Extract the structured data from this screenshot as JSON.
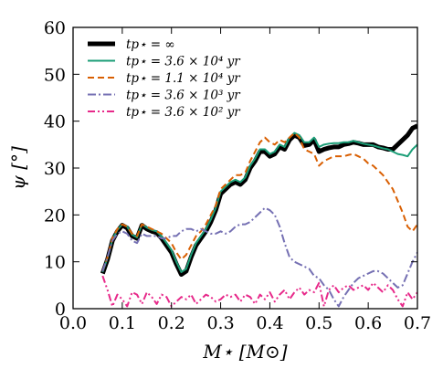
{
  "chart_data": {
    "type": "line",
    "xlabel": "M⋆ [M⊙]",
    "ylabel": "ψ [°]",
    "xlim": [
      0.0,
      0.7
    ],
    "ylim": [
      0,
      60
    ],
    "xticks": [
      0.0,
      0.1,
      0.2,
      0.3,
      0.4,
      0.5,
      0.6,
      0.7
    ],
    "xtick_labels": [
      "0.0",
      "0.1",
      "0.2",
      "0.3",
      "0.4",
      "0.5",
      "0.6",
      "0.7"
    ],
    "yticks": [
      0,
      10,
      20,
      30,
      40,
      50,
      60
    ],
    "ytick_labels": [
      "0",
      "10",
      "20",
      "30",
      "40",
      "50",
      "60"
    ],
    "grid": false,
    "legend_position": "top-left",
    "series": [
      {
        "name": "t_{p⋆} = ∞",
        "legend_label": "tp⋆ = ∞",
        "color": "#000000",
        "style": "solid-thick",
        "x": [
          0.06,
          0.07,
          0.08,
          0.09,
          0.1,
          0.11,
          0.12,
          0.13,
          0.14,
          0.15,
          0.16,
          0.17,
          0.18,
          0.19,
          0.2,
          0.21,
          0.22,
          0.23,
          0.24,
          0.25,
          0.26,
          0.27,
          0.28,
          0.29,
          0.3,
          0.31,
          0.32,
          0.33,
          0.34,
          0.35,
          0.36,
          0.37,
          0.38,
          0.39,
          0.4,
          0.41,
          0.42,
          0.43,
          0.44,
          0.45,
          0.46,
          0.47,
          0.48,
          0.49,
          0.5,
          0.51,
          0.52,
          0.53,
          0.54,
          0.55,
          0.56,
          0.57,
          0.58,
          0.59,
          0.6,
          0.61,
          0.62,
          0.63,
          0.64,
          0.65,
          0.66,
          0.67,
          0.68,
          0.69,
          0.7
        ],
        "values": [
          7.5,
          10.5,
          14.5,
          16.5,
          17.8,
          17.2,
          15.5,
          15.0,
          17.8,
          17.0,
          16.5,
          16.2,
          15.0,
          13.5,
          12.0,
          9.5,
          7.3,
          8.0,
          11.0,
          13.5,
          15.0,
          16.5,
          18.5,
          21.0,
          24.5,
          25.5,
          26.5,
          27.0,
          26.5,
          27.5,
          30.0,
          31.5,
          33.5,
          33.5,
          32.5,
          33.0,
          34.5,
          34.0,
          36.0,
          37.0,
          36.5,
          34.8,
          35.0,
          36.0,
          33.5,
          34.0,
          34.3,
          34.5,
          34.5,
          35.0,
          35.2,
          35.5,
          35.3,
          35.0,
          35.0,
          35.0,
          34.5,
          34.3,
          34.0,
          34.0,
          35.0,
          36.0,
          37.0,
          38.5,
          39.0
        ]
      },
      {
        "name": "t_{p⋆} = 3.6 × 10^4 yr",
        "legend_label": "tp⋆ = 3.6 × 10⁴ yr",
        "color": "#1b9e77",
        "style": "solid",
        "x": [
          0.06,
          0.07,
          0.08,
          0.09,
          0.1,
          0.11,
          0.12,
          0.13,
          0.14,
          0.15,
          0.16,
          0.17,
          0.18,
          0.19,
          0.2,
          0.21,
          0.22,
          0.23,
          0.24,
          0.25,
          0.26,
          0.27,
          0.28,
          0.29,
          0.3,
          0.31,
          0.32,
          0.33,
          0.34,
          0.35,
          0.36,
          0.37,
          0.38,
          0.39,
          0.4,
          0.41,
          0.42,
          0.43,
          0.44,
          0.45,
          0.46,
          0.47,
          0.48,
          0.49,
          0.5,
          0.51,
          0.52,
          0.53,
          0.54,
          0.55,
          0.56,
          0.57,
          0.58,
          0.59,
          0.6,
          0.61,
          0.62,
          0.63,
          0.64,
          0.65,
          0.66,
          0.67,
          0.68,
          0.69,
          0.7
        ],
        "values": [
          7.8,
          10.8,
          14.8,
          16.8,
          18.0,
          17.5,
          15.8,
          15.2,
          18.0,
          17.3,
          16.8,
          16.5,
          15.4,
          14.0,
          12.5,
          10.0,
          7.8,
          8.5,
          11.5,
          14.0,
          15.5,
          17.0,
          19.0,
          21.5,
          25.0,
          26.0,
          27.0,
          27.5,
          27.0,
          28.0,
          30.5,
          32.0,
          34.0,
          34.0,
          33.0,
          33.5,
          35.0,
          34.5,
          36.5,
          37.5,
          37.0,
          35.5,
          35.5,
          36.5,
          34.5,
          35.0,
          35.2,
          35.3,
          35.3,
          35.5,
          35.5,
          35.8,
          35.5,
          35.2,
          35.0,
          34.8,
          34.5,
          34.2,
          34.0,
          33.5,
          33.0,
          32.8,
          32.5,
          34.0,
          35.0
        ]
      },
      {
        "name": "t_{p⋆} = 1.1 × 10^4 yr",
        "legend_label": "tp⋆ = 1.1 × 10⁴ yr",
        "color": "#d95f02",
        "style": "dashed",
        "x": [
          0.06,
          0.07,
          0.08,
          0.09,
          0.1,
          0.11,
          0.12,
          0.13,
          0.14,
          0.15,
          0.16,
          0.17,
          0.18,
          0.19,
          0.2,
          0.21,
          0.22,
          0.23,
          0.24,
          0.25,
          0.26,
          0.27,
          0.28,
          0.29,
          0.3,
          0.31,
          0.32,
          0.33,
          0.34,
          0.35,
          0.36,
          0.37,
          0.38,
          0.39,
          0.4,
          0.41,
          0.42,
          0.43,
          0.44,
          0.45,
          0.46,
          0.47,
          0.48,
          0.49,
          0.5,
          0.51,
          0.52,
          0.53,
          0.54,
          0.55,
          0.56,
          0.57,
          0.58,
          0.59,
          0.6,
          0.61,
          0.62,
          0.63,
          0.64,
          0.65,
          0.66,
          0.67,
          0.68,
          0.69,
          0.7
        ],
        "values": [
          8.0,
          11.0,
          15.0,
          17.0,
          18.0,
          17.5,
          16.0,
          15.5,
          18.0,
          17.5,
          17.0,
          16.5,
          16.0,
          15.0,
          14.0,
          12.0,
          10.5,
          11.5,
          13.5,
          15.5,
          16.5,
          18.0,
          20.0,
          22.0,
          25.5,
          26.5,
          27.5,
          28.5,
          28.5,
          29.0,
          31.5,
          33.5,
          35.5,
          36.5,
          35.5,
          35.0,
          36.0,
          35.5,
          36.5,
          37.5,
          36.5,
          34.0,
          33.5,
          33.0,
          30.5,
          31.5,
          32.0,
          32.5,
          32.5,
          32.5,
          32.8,
          33.0,
          32.5,
          32.0,
          31.0,
          30.5,
          29.5,
          28.5,
          27.0,
          25.5,
          23.0,
          20.5,
          17.5,
          16.5,
          18.0
        ]
      },
      {
        "name": "t_{p⋆} = 3.6 × 10^3 yr",
        "legend_label": "tp⋆ = 3.6 × 10³ yr",
        "color": "#7570b3",
        "style": "dashdot",
        "x": [
          0.06,
          0.07,
          0.08,
          0.09,
          0.1,
          0.11,
          0.12,
          0.13,
          0.14,
          0.15,
          0.16,
          0.17,
          0.18,
          0.19,
          0.2,
          0.21,
          0.22,
          0.23,
          0.24,
          0.25,
          0.26,
          0.27,
          0.28,
          0.29,
          0.3,
          0.31,
          0.32,
          0.33,
          0.34,
          0.35,
          0.36,
          0.37,
          0.38,
          0.39,
          0.4,
          0.41,
          0.42,
          0.43,
          0.44,
          0.45,
          0.46,
          0.47,
          0.48,
          0.49,
          0.5,
          0.51,
          0.52,
          0.53,
          0.54,
          0.55,
          0.56,
          0.57,
          0.58,
          0.59,
          0.6,
          0.61,
          0.62,
          0.63,
          0.64,
          0.65,
          0.66,
          0.67,
          0.68,
          0.69,
          0.7
        ],
        "values": [
          8.0,
          11.0,
          14.5,
          16.0,
          16.5,
          16.0,
          14.5,
          14.0,
          16.0,
          15.5,
          15.5,
          15.5,
          15.0,
          15.0,
          15.5,
          15.5,
          16.5,
          17.0,
          17.0,
          16.5,
          17.0,
          16.5,
          16.0,
          16.0,
          16.5,
          16.0,
          16.5,
          17.5,
          18.0,
          18.0,
          18.5,
          19.5,
          20.5,
          21.5,
          21.0,
          20.0,
          17.5,
          14.0,
          11.0,
          10.0,
          9.5,
          9.0,
          8.5,
          7.0,
          6.5,
          5.0,
          4.0,
          2.0,
          0.5,
          2.5,
          4.0,
          5.5,
          6.5,
          7.0,
          7.5,
          8.0,
          8.0,
          7.5,
          6.5,
          5.5,
          4.5,
          5.0,
          7.5,
          10.0,
          12.0
        ]
      },
      {
        "name": "t_{p⋆} = 3.6 × 10^2 yr",
        "legend_label": "tp⋆ = 3.6 × 10² yr",
        "color": "#e7298a",
        "style": "dashdotdot",
        "x": [
          0.06,
          0.07,
          0.08,
          0.09,
          0.1,
          0.11,
          0.12,
          0.13,
          0.14,
          0.15,
          0.16,
          0.17,
          0.18,
          0.19,
          0.2,
          0.21,
          0.22,
          0.23,
          0.24,
          0.25,
          0.26,
          0.27,
          0.28,
          0.29,
          0.3,
          0.31,
          0.32,
          0.33,
          0.34,
          0.35,
          0.36,
          0.37,
          0.38,
          0.39,
          0.4,
          0.41,
          0.42,
          0.43,
          0.44,
          0.45,
          0.46,
          0.47,
          0.48,
          0.49,
          0.5,
          0.51,
          0.52,
          0.53,
          0.54,
          0.55,
          0.56,
          0.57,
          0.58,
          0.59,
          0.6,
          0.61,
          0.62,
          0.63,
          0.64,
          0.65,
          0.66,
          0.67,
          0.68,
          0.69,
          0.7
        ],
        "values": [
          7.0,
          4.0,
          0.5,
          3.0,
          2.0,
          0.5,
          3.5,
          3.0,
          1.0,
          3.5,
          2.5,
          1.0,
          3.0,
          2.5,
          0.5,
          1.5,
          2.5,
          2.0,
          3.0,
          1.0,
          2.0,
          3.0,
          2.5,
          1.5,
          2.0,
          3.0,
          2.5,
          3.0,
          1.5,
          3.0,
          2.5,
          1.0,
          3.0,
          2.0,
          3.5,
          1.5,
          3.0,
          4.0,
          2.0,
          3.5,
          4.5,
          3.0,
          4.0,
          3.5,
          5.5,
          0.5,
          4.0,
          5.0,
          3.5,
          4.5,
          5.0,
          4.0,
          4.5,
          5.0,
          4.0,
          5.5,
          4.5,
          3.5,
          5.0,
          4.0,
          2.0,
          0.5,
          3.5,
          2.0,
          3.5
        ]
      }
    ]
  }
}
